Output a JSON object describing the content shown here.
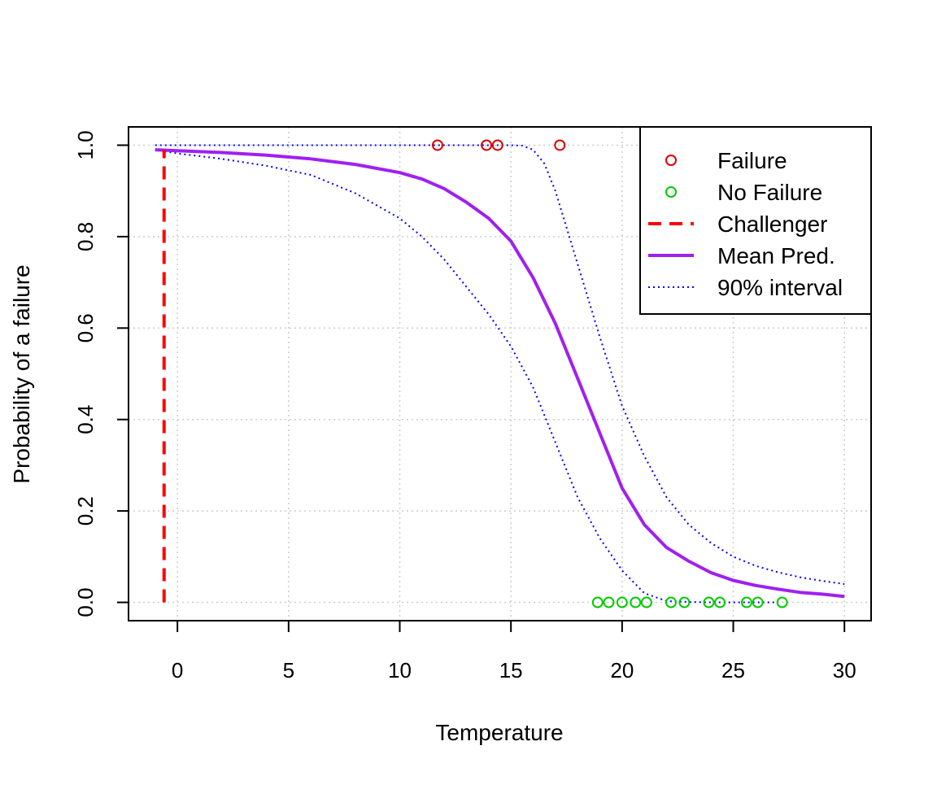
{
  "chart_data": {
    "type": "line",
    "xlabel": "Temperature",
    "ylabel": "Probability of a failure",
    "xlim": [
      -2.2,
      31.2
    ],
    "ylim": [
      -0.04,
      1.04
    ],
    "xticks": [
      0,
      5,
      10,
      15,
      20,
      25,
      30
    ],
    "yticks": [
      0.0,
      0.2,
      0.4,
      0.6,
      0.8,
      1.0
    ],
    "xtick_labels": [
      "0",
      "5",
      "10",
      "15",
      "20",
      "25",
      "30"
    ],
    "ytick_labels": [
      "0.0",
      "0.2",
      "0.4",
      "0.6",
      "0.8",
      "1.0"
    ],
    "grid": true,
    "legend_position": "top-right",
    "legend": [
      {
        "label": "Failure",
        "style": "point",
        "color": "#dd0000"
      },
      {
        "label": "No Failure",
        "style": "point",
        "color": "#00cc00"
      },
      {
        "label": "Challenger",
        "style": "dashed",
        "color": "#ff0000"
      },
      {
        "label": "Mean Pred.",
        "style": "solid",
        "color": "#a020f0"
      },
      {
        "label": "90% interval",
        "style": "dotted",
        "color": "#0000ff"
      }
    ],
    "challenger": {
      "x": -0.6,
      "y_from": 0.0,
      "y_to": 0.99
    },
    "failures": {
      "x": [
        11.7,
        13.9,
        14.4,
        17.2
      ],
      "y": [
        1,
        1,
        1,
        1
      ]
    },
    "no_failures": {
      "x": [
        18.9,
        19.4,
        20.0,
        20.6,
        21.1,
        22.2,
        22.8,
        23.9,
        24.4,
        25.6,
        26.1,
        27.2
      ],
      "y": [
        0,
        0,
        0,
        0,
        0,
        0,
        0,
        0,
        0,
        0,
        0,
        0
      ]
    },
    "series": [
      {
        "name": "Mean Pred.",
        "x": [
          -1,
          0,
          2,
          4,
          6,
          8,
          10,
          11,
          12,
          13,
          14,
          15,
          16,
          17,
          18,
          19,
          20,
          21,
          22,
          23,
          24,
          25,
          26,
          27,
          28,
          29,
          30
        ],
        "y": [
          0.99,
          0.988,
          0.984,
          0.978,
          0.97,
          0.958,
          0.94,
          0.926,
          0.905,
          0.875,
          0.84,
          0.79,
          0.71,
          0.61,
          0.49,
          0.37,
          0.25,
          0.17,
          0.12,
          0.09,
          0.065,
          0.048,
          0.037,
          0.029,
          0.022,
          0.018,
          0.013
        ]
      },
      {
        "name": "90% interval upper",
        "x": [
          -1,
          0,
          2,
          4,
          6,
          8,
          10,
          12,
          14,
          15,
          15.5,
          16,
          16.5,
          17,
          18,
          19,
          20,
          21,
          22,
          23,
          24,
          25,
          26,
          27,
          28,
          29,
          30
        ],
        "y": [
          1.0,
          1.0,
          1.0,
          1.0,
          1.0,
          1.0,
          1.0,
          1.0,
          1.0,
          1.0,
          0.999,
          0.99,
          0.96,
          0.9,
          0.74,
          0.58,
          0.43,
          0.32,
          0.23,
          0.17,
          0.13,
          0.1,
          0.08,
          0.066,
          0.055,
          0.047,
          0.04
        ]
      },
      {
        "name": "90% interval lower",
        "x": [
          -1,
          0,
          2,
          4,
          6,
          8,
          10,
          11,
          12,
          13,
          14,
          15,
          16,
          17,
          18,
          19,
          20,
          21,
          22,
          23,
          24,
          25,
          26,
          27
        ],
        "y": [
          0.99,
          0.982,
          0.97,
          0.955,
          0.935,
          0.895,
          0.84,
          0.8,
          0.75,
          0.69,
          0.63,
          0.56,
          0.47,
          0.35,
          0.23,
          0.14,
          0.07,
          0.02,
          0.003,
          0.001,
          0.0,
          0.0,
          0.0,
          0.0
        ]
      }
    ]
  }
}
